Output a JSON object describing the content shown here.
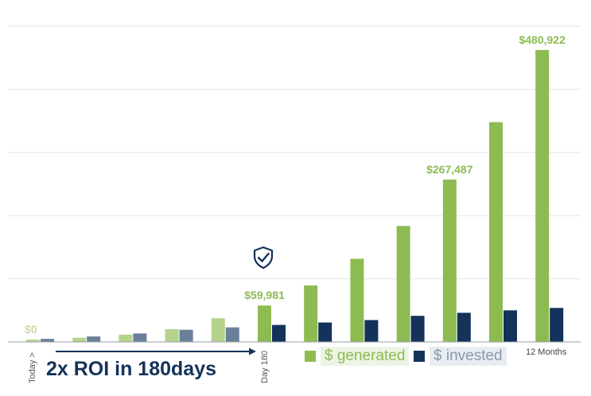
{
  "chart_data": {
    "type": "bar",
    "title": "",
    "xlabel": "",
    "ylabel": "",
    "ylim": [
      0,
      520000
    ],
    "grid": true,
    "legend_position": "bottom",
    "colors": {
      "generated": "#8dbb52",
      "generated_early": "#b5d38c",
      "invested": "#14325a",
      "invested_early": "#6a7f99",
      "label_green": "#8dbb52",
      "label_faded": "#c5dda6"
    },
    "series": [
      {
        "name": "$ generated",
        "values": [
          0,
          7000,
          12000,
          21000,
          39000,
          59981,
          93000,
          137000,
          191000,
          267487,
          362000,
          480922
        ]
      },
      {
        "name": "$ invested",
        "values": [
          5000,
          9000,
          14000,
          20000,
          24000,
          28000,
          32000,
          36000,
          43000,
          48000,
          52000,
          56000
        ]
      }
    ],
    "data_labels": [
      {
        "bar_index": 0,
        "text": "$0",
        "faded": true
      },
      {
        "bar_index": 5,
        "text": "$59,981",
        "faded": false
      },
      {
        "bar_index": 9,
        "text": "$267,487",
        "faded": false
      },
      {
        "bar_index": 11,
        "text": "$480,922",
        "faded": false
      }
    ],
    "x_tick_labels": {
      "start": "Today >",
      "day180": "Day 180",
      "end": "12 Months"
    },
    "annotation": "2x ROI in 180days",
    "marker_icon": "shield-check-icon"
  }
}
